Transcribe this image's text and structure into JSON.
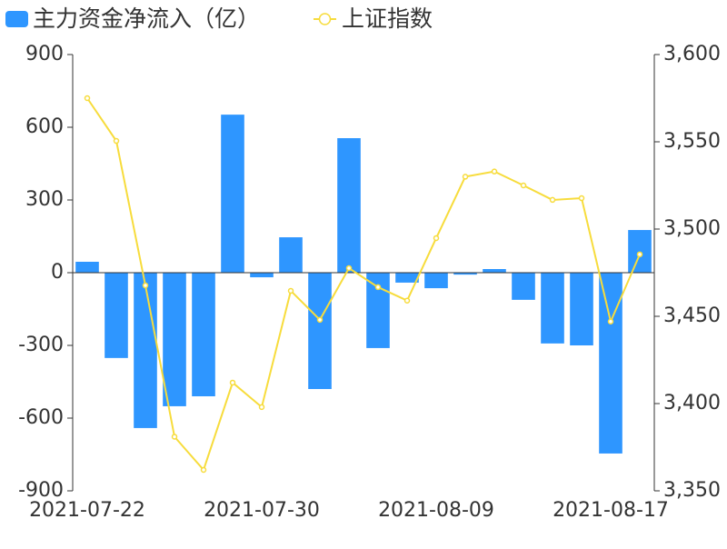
{
  "chart_data": {
    "type": "bar-line",
    "categories": [
      "2021-07-22",
      null,
      null,
      null,
      null,
      null,
      "2021-07-30",
      null,
      null,
      null,
      null,
      null,
      "2021-08-09",
      null,
      null,
      null,
      null,
      null,
      "2021-08-17",
      null
    ],
    "series": [
      {
        "name": "主力资金净流入（亿）",
        "color": "#2e96ff",
        "type": "bar",
        "values": [
          45,
          -352,
          -641,
          -551,
          -510,
          652,
          -19,
          146,
          -480,
          555,
          -311,
          -41,
          -64,
          -8,
          15,
          -112,
          -292,
          -300,
          -746,
          176
        ]
      },
      {
        "name": "上证指数",
        "color": "#f7dc3c",
        "type": "line",
        "axis": "y2",
        "values": [
          3575,
          3550.5,
          3467.7,
          3381,
          3362,
          3412,
          3398,
          3464.6,
          3448,
          3477.6,
          3466.7,
          3459,
          3494.8,
          3530,
          3533,
          3525,
          3516.7,
          3517.7,
          3447,
          3485.5
        ]
      }
    ],
    "ylim": [
      -900,
      900
    ],
    "yticks": [
      -900,
      -600,
      -300,
      0,
      300,
      600,
      900
    ],
    "y2lim": [
      3350,
      3600
    ],
    "y2ticks": [
      {
        "value": 3350,
        "label": "3,350"
      },
      {
        "value": 3400,
        "label": "3,400"
      },
      {
        "value": 3450,
        "label": "3,450"
      },
      {
        "value": 3500,
        "label": "3,500"
      },
      {
        "value": 3550,
        "label": "3,550"
      },
      {
        "value": 3600,
        "label": "3,600"
      }
    ]
  }
}
